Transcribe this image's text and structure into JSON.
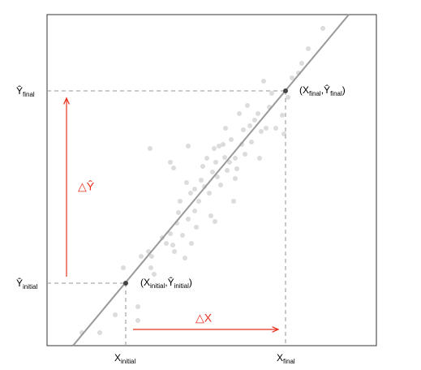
{
  "labels": {
    "y_final": {
      "symbol": "Ŷ",
      "subscript": "final"
    },
    "y_initial": {
      "symbol": "Ŷ",
      "subscript": "initial"
    },
    "x_initial": {
      "symbol": "X",
      "subscript": "initial"
    },
    "x_final": {
      "symbol": "X",
      "subscript": "final"
    },
    "point_final": {
      "open": "(",
      "x": "X",
      "x_sub": "final",
      "sep": ",",
      "y": "Ŷ",
      "y_sub": "final",
      "close": ")"
    },
    "point_initial": {
      "open": "(",
      "x": "X",
      "x_sub": "initial",
      "sep": ",",
      "y": "Ŷ",
      "y_sub": "initial",
      "close": ")"
    },
    "delta_y": "△Ŷ",
    "delta_x": "△X"
  }
}
